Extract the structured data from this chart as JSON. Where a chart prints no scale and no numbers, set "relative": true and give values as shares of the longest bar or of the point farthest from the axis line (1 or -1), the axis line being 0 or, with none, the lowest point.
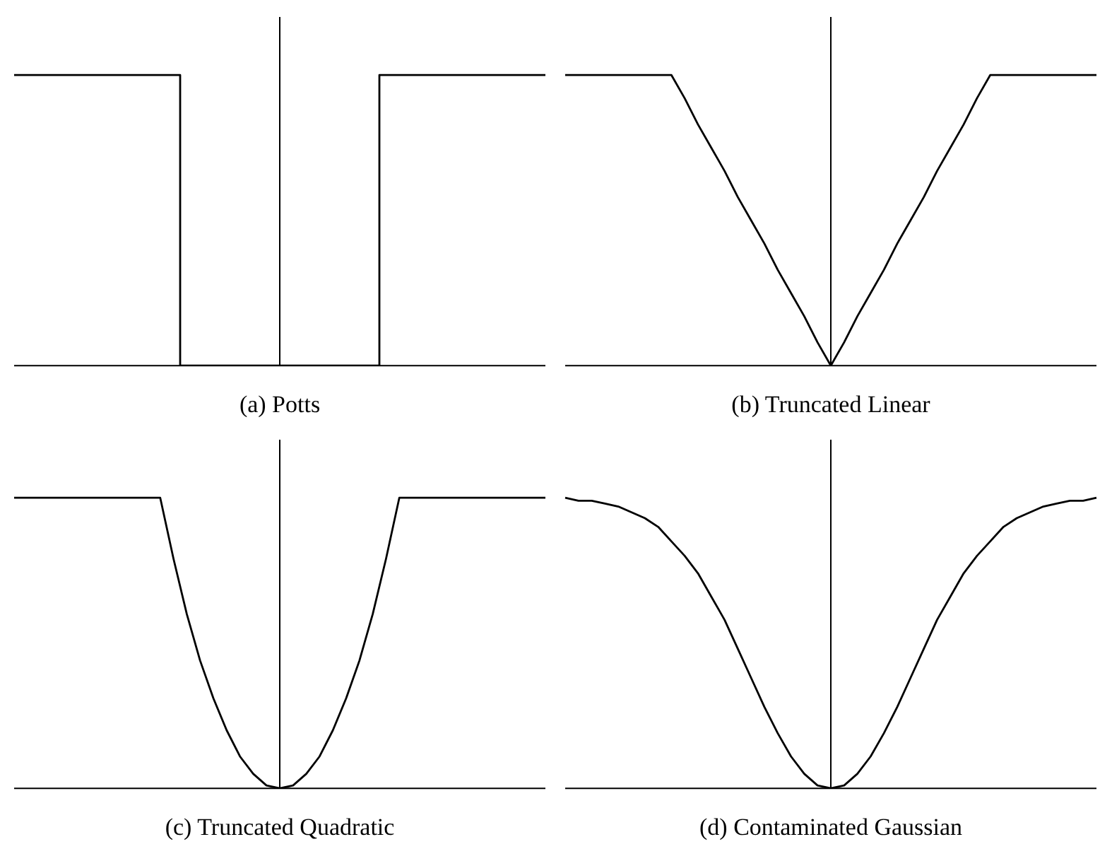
{
  "chart_data": [
    {
      "type": "step",
      "title": "(a) Potts",
      "relative": true,
      "categories": [
        null,
        null,
        null,
        null,
        null,
        null,
        null,
        null,
        null,
        null,
        null,
        null,
        null,
        null,
        null,
        null,
        null,
        null,
        null,
        null,
        null,
        null,
        null,
        null,
        null,
        null,
        null,
        null,
        null,
        null,
        null,
        null,
        null,
        null,
        null,
        null,
        null,
        null,
        null,
        null,
        null
      ],
      "grid": false,
      "legend": false,
      "marker": "none",
      "series": [
        {
          "color": "#000000",
          "values": [
            1,
            1,
            1,
            1,
            1,
            1,
            1,
            1,
            1,
            1,
            1,
            1,
            1,
            0,
            0,
            0,
            0,
            0,
            0,
            0,
            0,
            0,
            0,
            0,
            0,
            0,
            0,
            0,
            1,
            1,
            1,
            1,
            1,
            1,
            1,
            1,
            1,
            1,
            1,
            1,
            1
          ]
        }
      ]
    },
    {
      "type": "line",
      "title": "(b) Truncated Linear",
      "relative": true,
      "categories": [
        null,
        null,
        null,
        null,
        null,
        null,
        null,
        null,
        null,
        null,
        null,
        null,
        null,
        null,
        null,
        null,
        null,
        null,
        null,
        null,
        null,
        null,
        null,
        null,
        null,
        null,
        null,
        null,
        null,
        null,
        null,
        null,
        null,
        null,
        null,
        null,
        null,
        null,
        null,
        null,
        null
      ],
      "grid": false,
      "legend": false,
      "marker": "none",
      "series": [
        {
          "color": "#000000",
          "values": [
            1,
            1,
            1,
            1,
            1,
            1,
            1,
            1,
            1,
            0.92,
            0.83,
            0.75,
            0.67,
            0.58,
            0.5,
            0.42,
            0.33,
            0.25,
            0.17,
            0.08,
            0,
            0.08,
            0.17,
            0.25,
            0.33,
            0.42,
            0.5,
            0.58,
            0.67,
            0.75,
            0.83,
            0.92,
            1,
            1,
            1,
            1,
            1,
            1,
            1,
            1,
            1
          ]
        }
      ]
    },
    {
      "type": "line",
      "title": "(c) Truncated Quadratic",
      "relative": true,
      "categories": [
        null,
        null,
        null,
        null,
        null,
        null,
        null,
        null,
        null,
        null,
        null,
        null,
        null,
        null,
        null,
        null,
        null,
        null,
        null,
        null,
        null,
        null,
        null,
        null,
        null,
        null,
        null,
        null,
        null,
        null,
        null,
        null,
        null,
        null,
        null,
        null,
        null,
        null,
        null,
        null,
        null
      ],
      "grid": false,
      "legend": false,
      "marker": "none",
      "series": [
        {
          "color": "#000000",
          "values": [
            1,
            1,
            1,
            1,
            1,
            1,
            1,
            1,
            1,
            1,
            1,
            1,
            0.79,
            0.6,
            0.44,
            0.31,
            0.2,
            0.11,
            0.05,
            0.01,
            0,
            0.01,
            0.05,
            0.11,
            0.2,
            0.31,
            0.44,
            0.6,
            0.79,
            1,
            1,
            1,
            1,
            1,
            1,
            1,
            1,
            1,
            1,
            1,
            1
          ]
        }
      ]
    },
    {
      "type": "line",
      "title": "(d) Contaminated Gaussian",
      "relative": true,
      "categories": [
        null,
        null,
        null,
        null,
        null,
        null,
        null,
        null,
        null,
        null,
        null,
        null,
        null,
        null,
        null,
        null,
        null,
        null,
        null,
        null,
        null,
        null,
        null,
        null,
        null,
        null,
        null,
        null,
        null,
        null,
        null,
        null,
        null,
        null,
        null,
        null,
        null,
        null,
        null,
        null,
        null
      ],
      "grid": false,
      "legend": false,
      "marker": "none",
      "series": [
        {
          "color": "#000000",
          "values": [
            1,
            0.99,
            0.99,
            0.98,
            0.97,
            0.95,
            0.93,
            0.9,
            0.85,
            0.8,
            0.74,
            0.66,
            0.58,
            0.48,
            0.38,
            0.28,
            0.19,
            0.11,
            0.05,
            0.01,
            0,
            0.01,
            0.05,
            0.11,
            0.19,
            0.28,
            0.38,
            0.48,
            0.58,
            0.66,
            0.74,
            0.8,
            0.85,
            0.9,
            0.93,
            0.95,
            0.97,
            0.98,
            0.99,
            0.99,
            1
          ]
        }
      ]
    }
  ]
}
